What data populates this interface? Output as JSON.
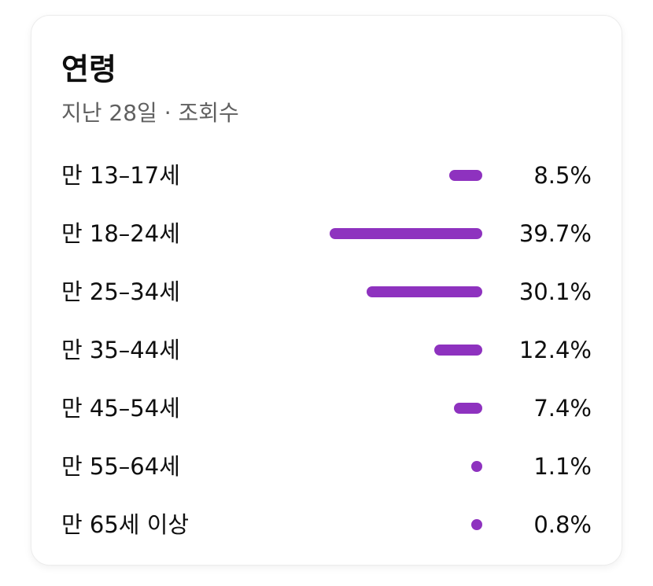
{
  "card": {
    "title": "연령",
    "subtitle": "지난 28일 · 조회수"
  },
  "colors": {
    "bar": "#8e32bf"
  },
  "chart_data": {
    "type": "bar",
    "orientation": "horizontal",
    "title": "연령",
    "subtitle": "지난 28일 · 조회수",
    "categories": [
      "만 13–17세",
      "만 18–24세",
      "만 25–34세",
      "만 35–44세",
      "만 45–54세",
      "만 55–64세",
      "만 65세 이상"
    ],
    "values": [
      8.5,
      39.7,
      30.1,
      12.4,
      7.4,
      1.1,
      0.8
    ],
    "value_labels": [
      "8.5%",
      "39.7%",
      "30.1%",
      "12.4%",
      "7.4%",
      "1.1%",
      "0.8%"
    ],
    "unit": "%",
    "xlim": [
      0,
      44
    ]
  }
}
